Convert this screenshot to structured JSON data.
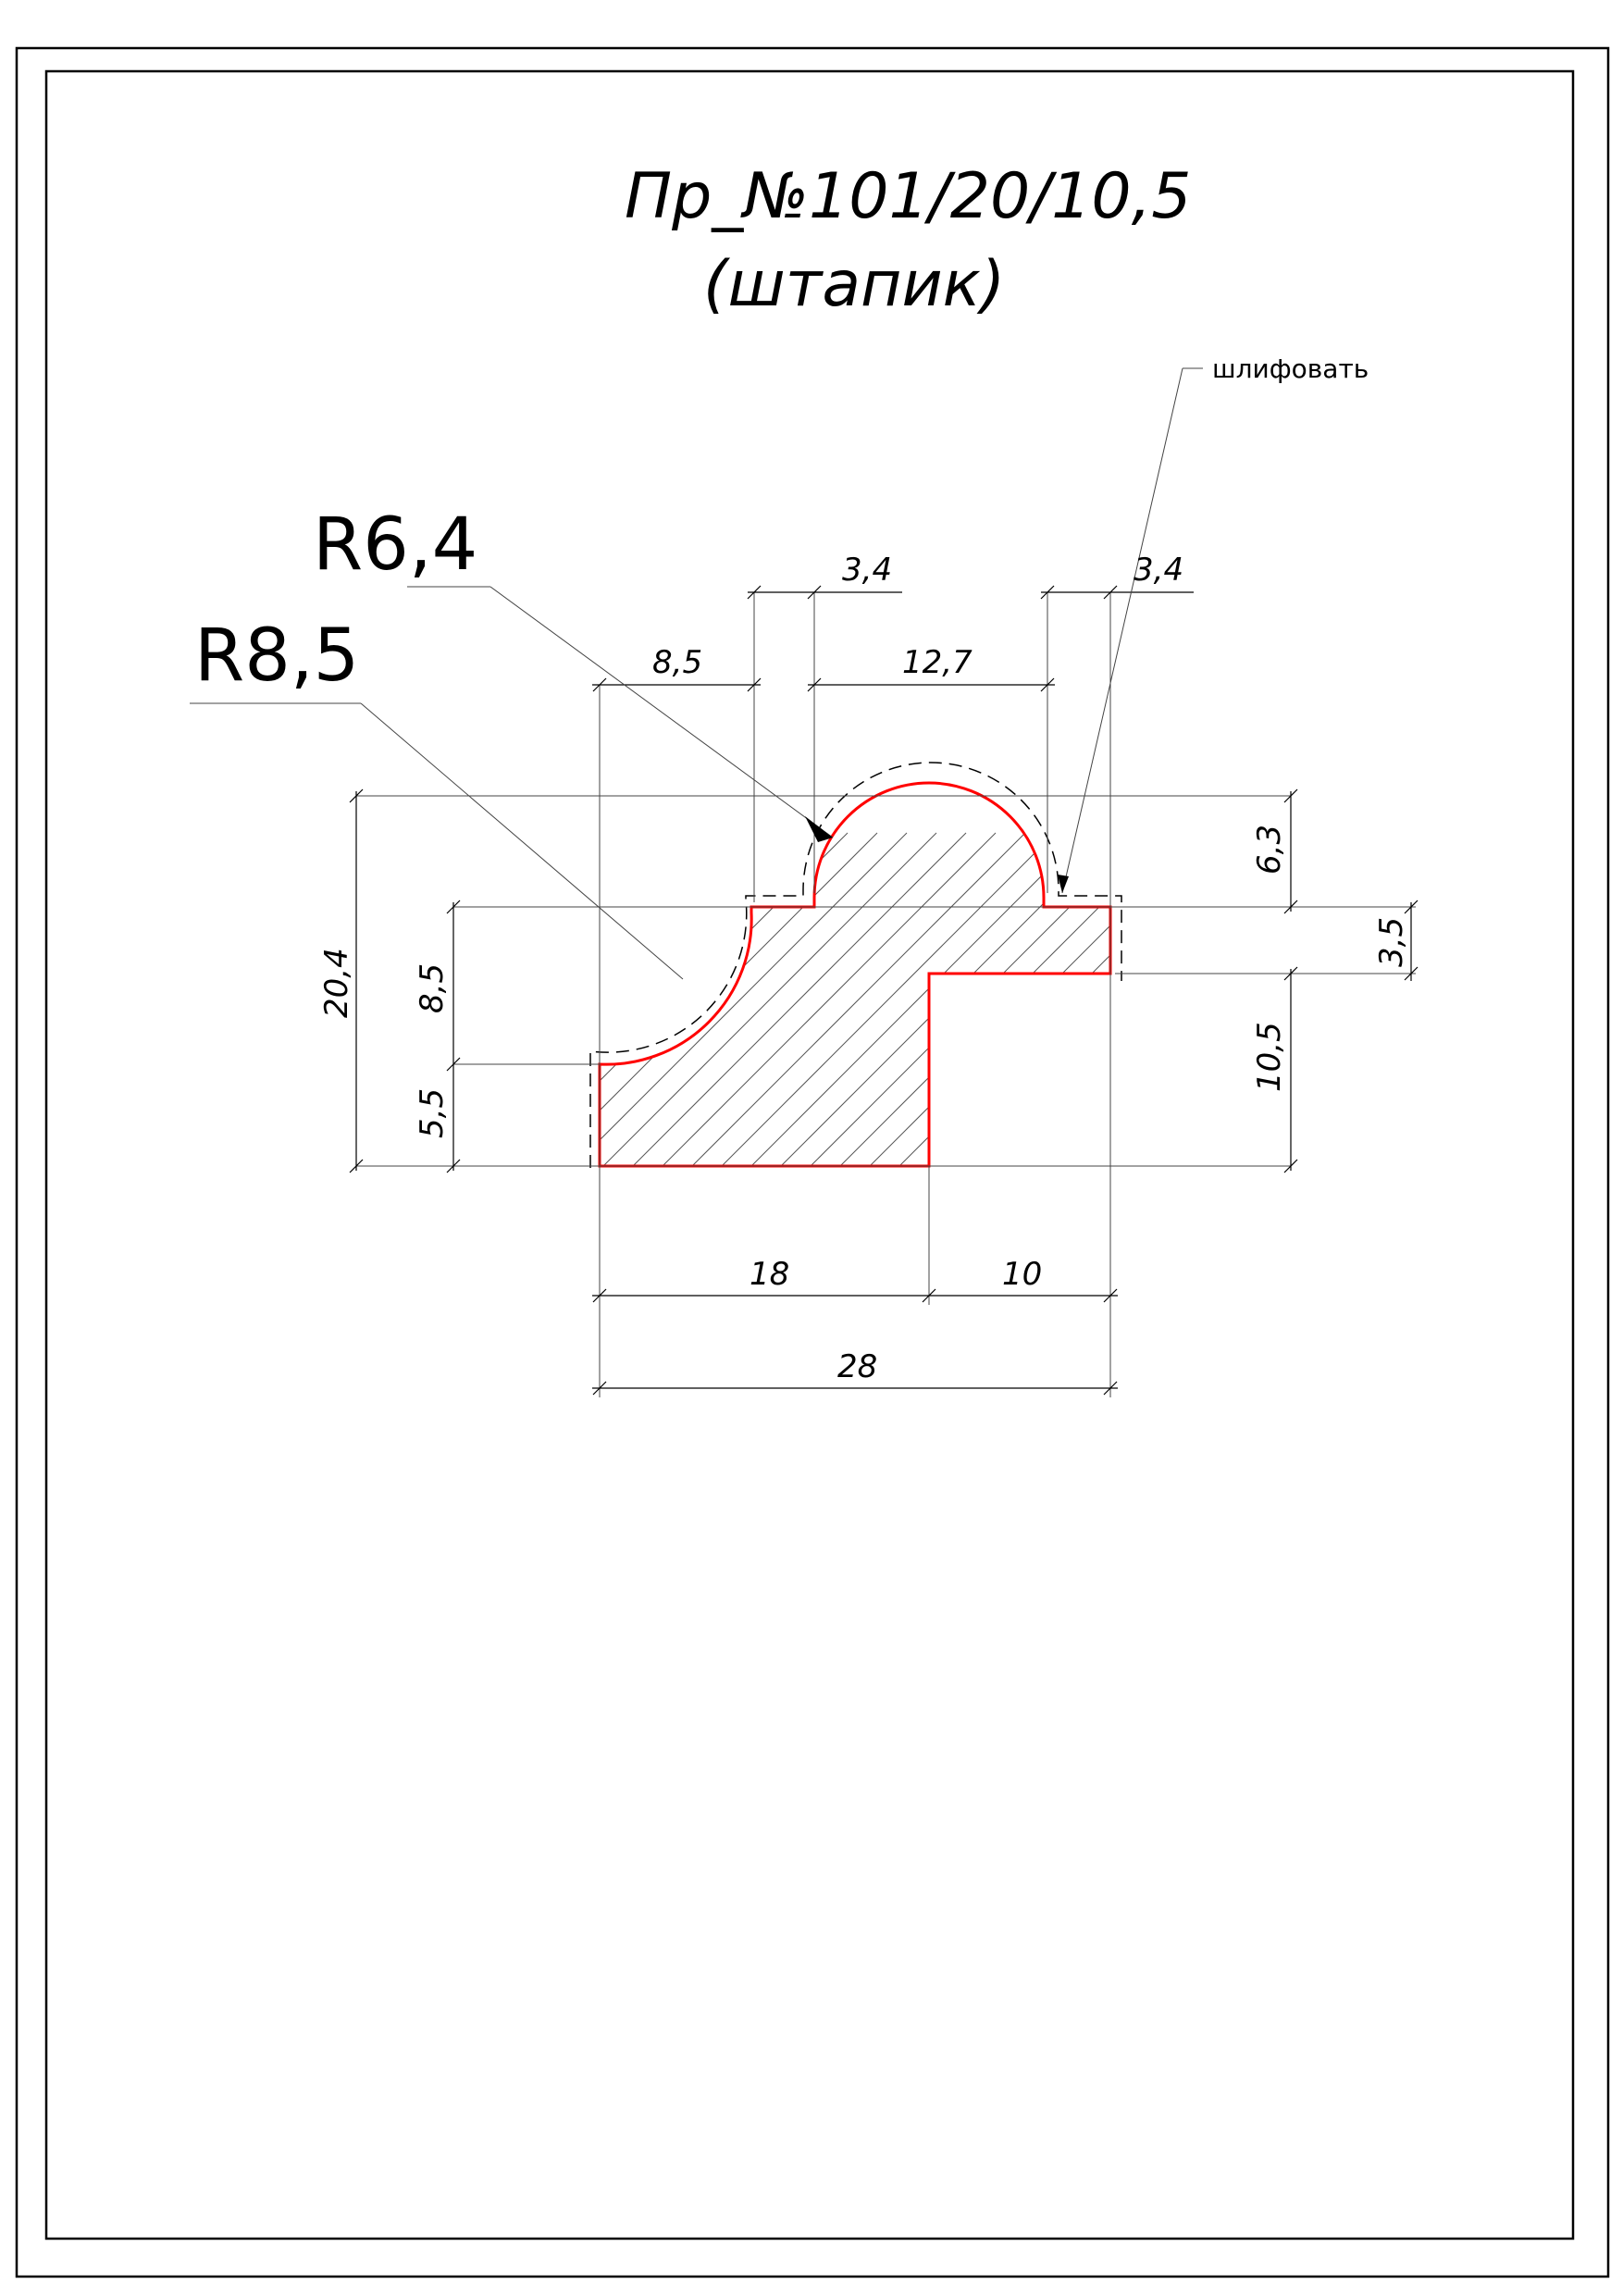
{
  "drawing": {
    "title_line1": "Пр_№101/20/10,5",
    "title_line2": "(штапик)",
    "note": "шлифовать",
    "radius_large": "R8,5",
    "radius_small": "R6,4",
    "profile_color": "#ff0000"
  },
  "dimensions": {
    "overall_height": "20,4",
    "left_step_height": "8,5",
    "left_base_height": "5,5",
    "bead_height": "6,3",
    "shoulder_height": "3,5",
    "rebate_height": "10,5",
    "top_left_width": "8,5",
    "left_fillet_width": "3,4",
    "bead_width": "12,7",
    "right_fillet_width": "3,4",
    "bottom_left_width": "18",
    "bottom_right_width": "10",
    "overall_width": "28"
  }
}
